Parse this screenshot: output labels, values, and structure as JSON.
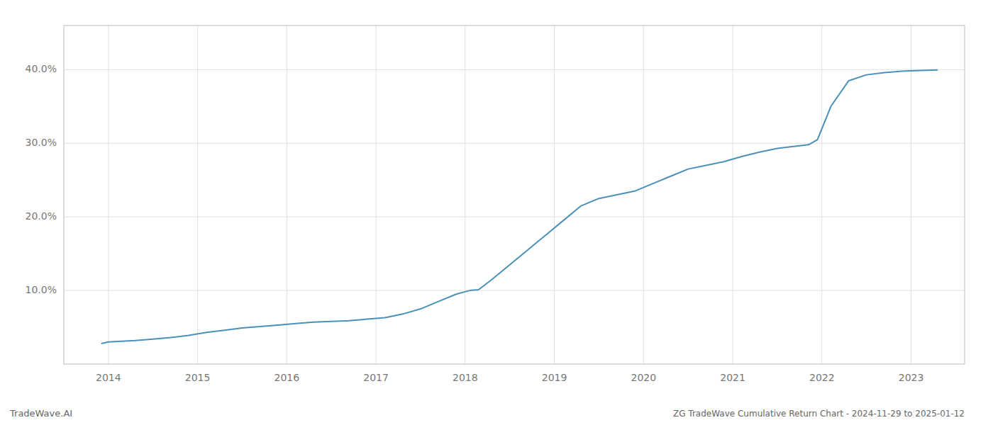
{
  "chart_data": {
    "type": "line",
    "title": "ZG TradeWave Cumulative Return Chart - 2024-11-29 to 2025-01-12",
    "annotations": [
      "TradeWave.AI"
    ],
    "x": [
      2013.92,
      2014.0,
      2014.15,
      2014.3,
      2014.5,
      2014.7,
      2014.9,
      2015.1,
      2015.3,
      2015.5,
      2015.7,
      2015.9,
      2016.1,
      2016.3,
      2016.5,
      2016.7,
      2016.9,
      2017.1,
      2017.3,
      2017.5,
      2017.7,
      2017.9,
      2018.05,
      2018.15,
      2018.3,
      2018.5,
      2018.7,
      2018.9,
      2019.1,
      2019.3,
      2019.5,
      2019.7,
      2019.9,
      2020.1,
      2020.3,
      2020.5,
      2020.7,
      2020.9,
      2021.1,
      2021.3,
      2021.5,
      2021.7,
      2021.85,
      2021.95,
      2022.1,
      2022.3,
      2022.5,
      2022.7,
      2022.9,
      2023.1,
      2023.3
    ],
    "values": [
      2.8,
      3.0,
      3.1,
      3.2,
      3.4,
      3.6,
      3.9,
      4.3,
      4.6,
      4.9,
      5.1,
      5.3,
      5.5,
      5.7,
      5.8,
      5.9,
      6.1,
      6.3,
      6.8,
      7.5,
      8.5,
      9.5,
      10.0,
      10.1,
      11.5,
      13.5,
      15.5,
      17.5,
      19.5,
      21.5,
      22.5,
      23.0,
      23.5,
      24.5,
      25.5,
      26.5,
      27.0,
      27.5,
      28.2,
      28.8,
      29.3,
      29.6,
      29.8,
      30.5,
      35.0,
      38.5,
      39.3,
      39.6,
      39.8,
      39.9,
      39.95
    ],
    "color": "#4a90b8",
    "xlim": [
      2013.5,
      2023.6
    ],
    "ylim": [
      0,
      46
    ],
    "xticks": [
      2014,
      2015,
      2016,
      2017,
      2018,
      2019,
      2020,
      2021,
      2022,
      2023
    ],
    "yticks": [
      {
        "value": 10.0,
        "label": "10.0%"
      },
      {
        "value": 20.0,
        "label": "20.0%"
      },
      {
        "value": 30.0,
        "label": "30.0%"
      },
      {
        "value": 40.0,
        "label": "40.0%"
      }
    ],
    "grid": true
  }
}
